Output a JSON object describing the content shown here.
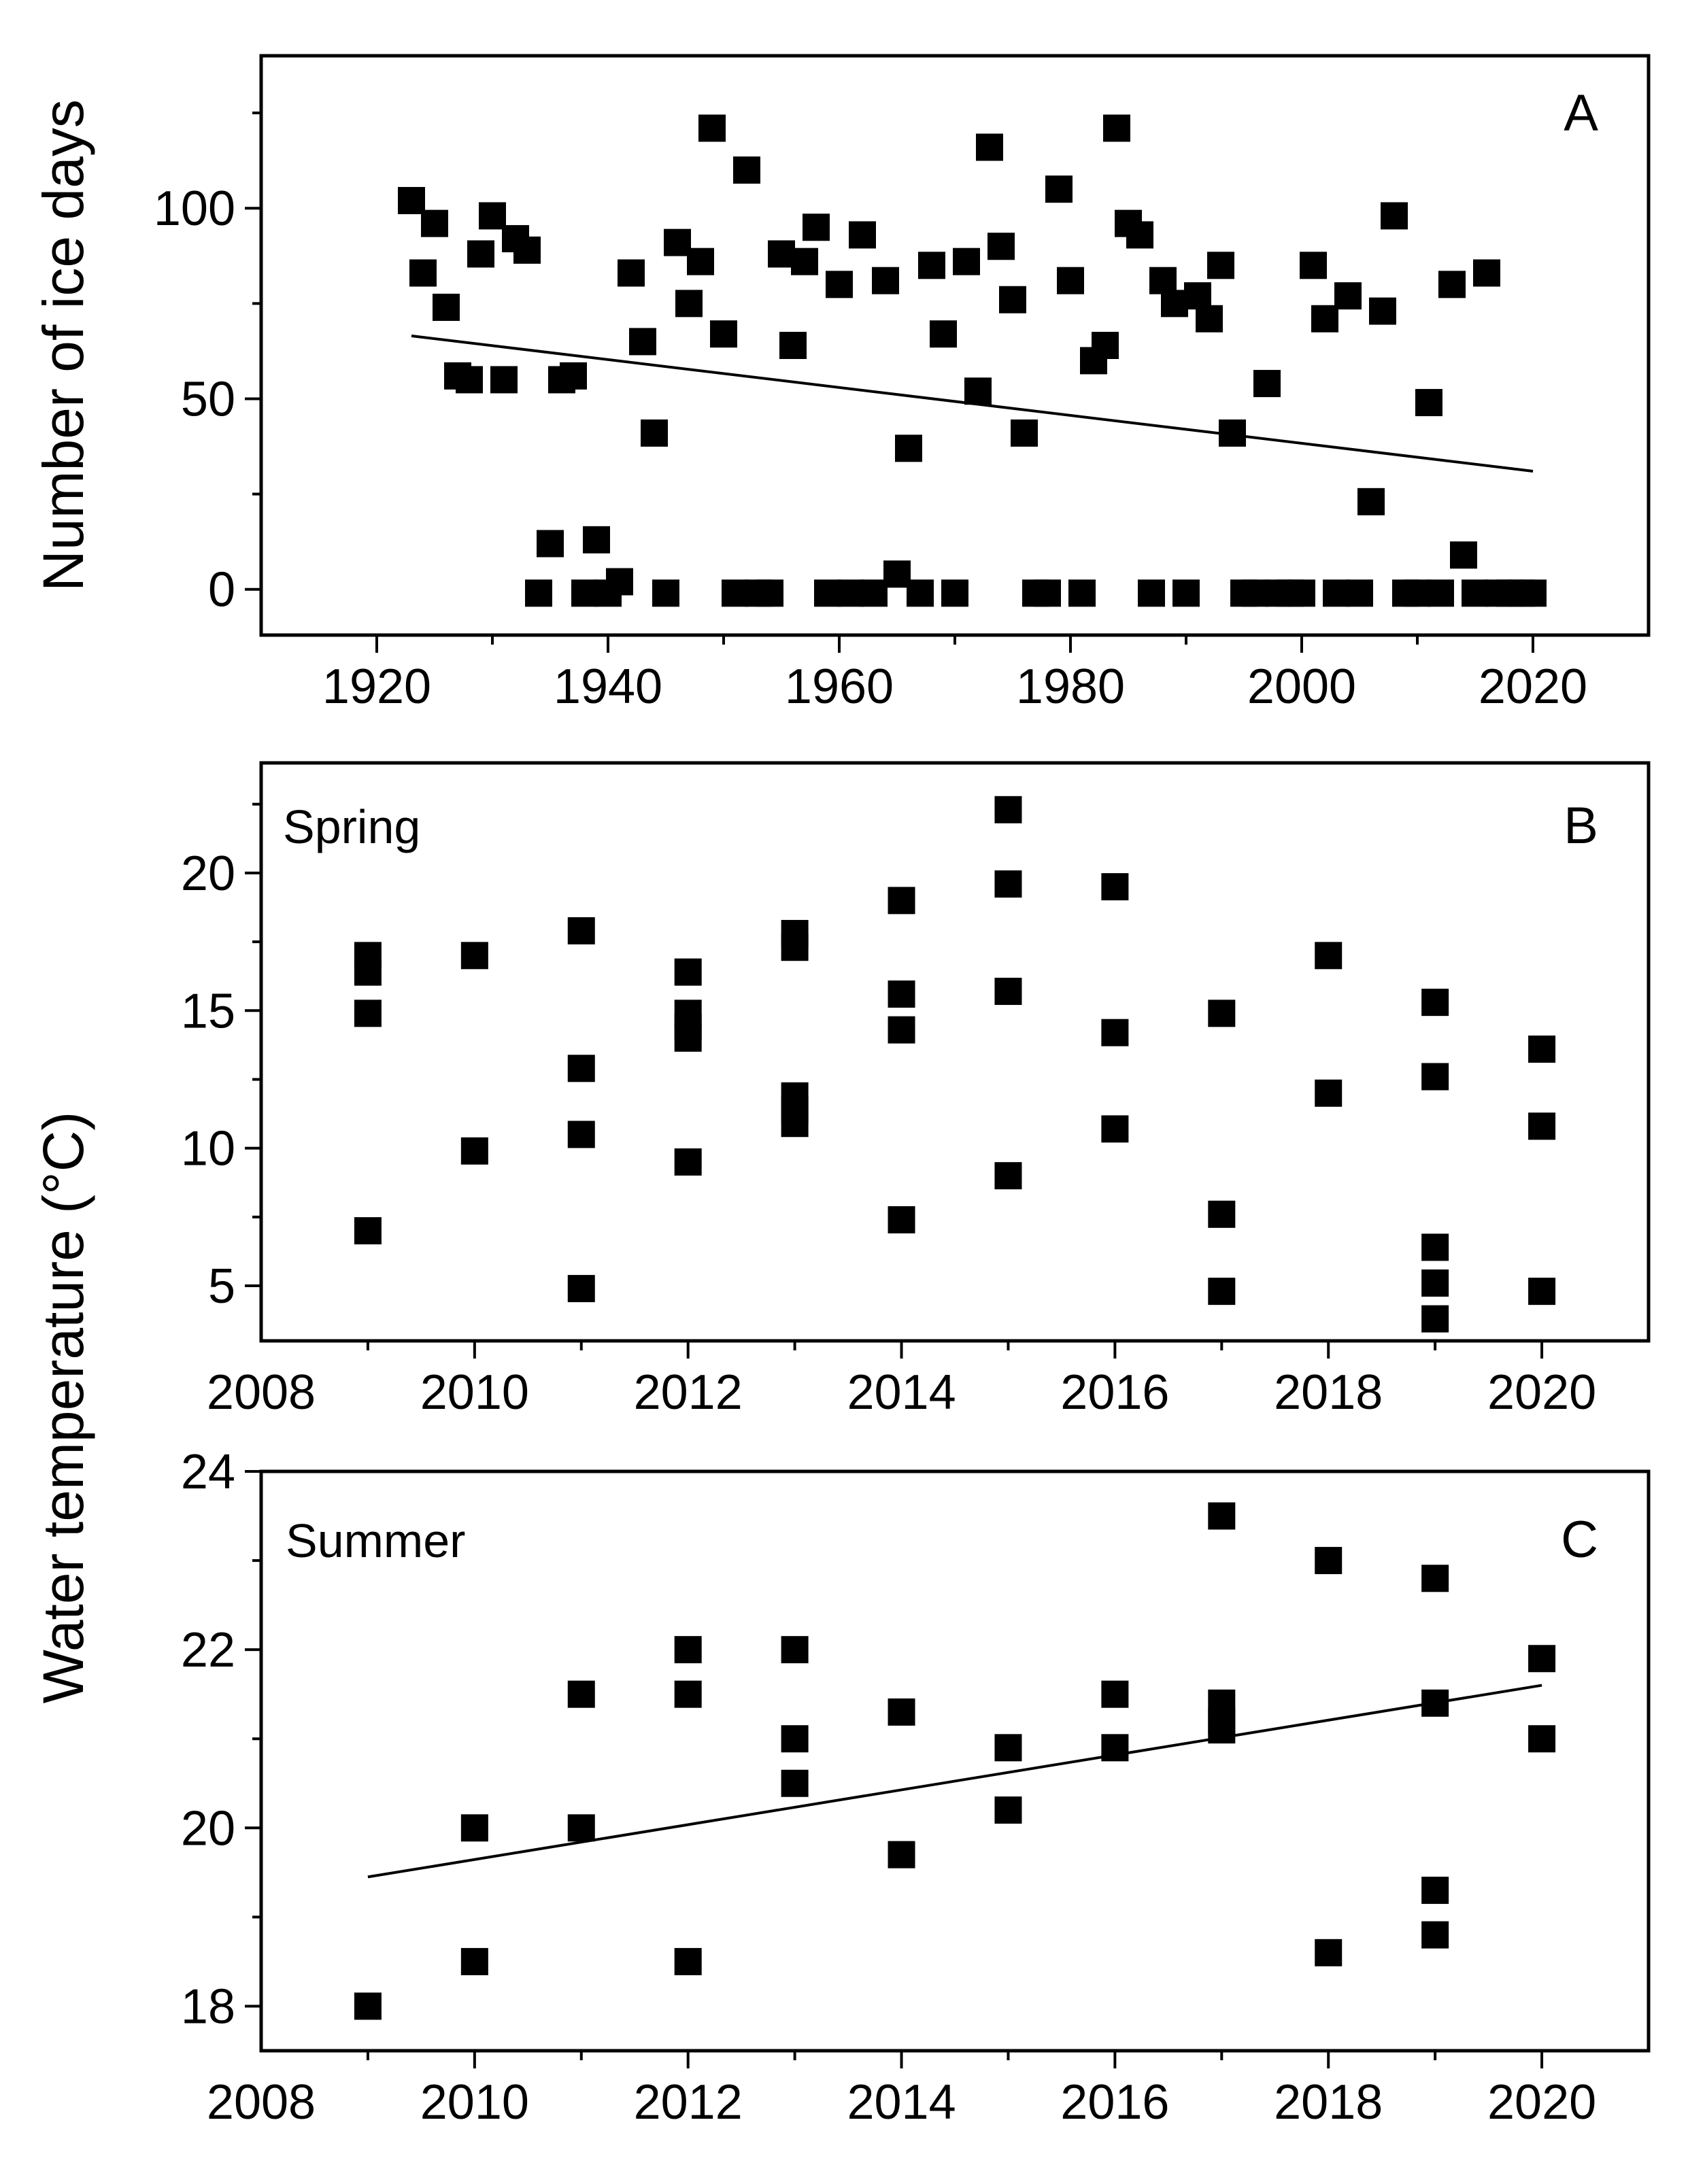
{
  "chart_data": [
    {
      "panel": "A",
      "type": "scatter",
      "ylabel": "Number of ice days",
      "xlim": [
        1910,
        2030
      ],
      "ylim": [
        -12,
        140
      ],
      "xticks": [
        1920,
        1940,
        1960,
        1980,
        2000,
        2020
      ],
      "yticks": [
        0,
        50,
        100
      ],
      "x": [
        1923,
        1924,
        1925,
        1926,
        1927,
        1928,
        1929,
        1930,
        1931,
        1932,
        1933,
        1934,
        1935,
        1936,
        1937,
        1938,
        1939,
        1940,
        1941,
        1942,
        1943,
        1944,
        1945,
        1946,
        1947,
        1948,
        1949,
        1950,
        1951,
        1952,
        1953,
        1954,
        1955,
        1956,
        1957,
        1958,
        1959,
        1960,
        1961,
        1962,
        1963,
        1964,
        1965,
        1966,
        1967,
        1968,
        1969,
        1970,
        1971,
        1972,
        1973,
        1974,
        1975,
        1976,
        1977,
        1978,
        1979,
        1980,
        1981,
        1982,
        1983,
        1984,
        1985,
        1986,
        1987,
        1988,
        1989,
        1990,
        1991,
        1992,
        1993,
        1994,
        1995,
        1996,
        1997,
        1998,
        1999,
        2000,
        2001,
        2002,
        2003,
        2004,
        2005,
        2006,
        2007,
        2008,
        2009,
        2010,
        2011,
        2012,
        2013,
        2014,
        2015,
        2016,
        2017,
        2018,
        2019,
        2020
      ],
      "y": [
        102,
        83,
        96,
        74,
        56,
        55,
        88,
        98,
        55,
        92,
        89,
        -1,
        12,
        55,
        56,
        -1,
        13,
        -1,
        2,
        83,
        65,
        41,
        -1,
        91,
        75,
        86,
        121,
        67,
        -1,
        110,
        -1,
        -1,
        88,
        64,
        86,
        95,
        -1,
        80,
        -1,
        93,
        -1,
        81,
        4,
        37,
        -1,
        85,
        67,
        -1,
        86,
        52,
        116,
        90,
        76,
        41,
        -1,
        -1,
        105,
        81,
        -1,
        60,
        64,
        121,
        96,
        93,
        -1,
        81,
        75,
        -1,
        77,
        71,
        85,
        41,
        -1,
        -1,
        54,
        -1,
        -1,
        -1,
        85,
        71,
        -1,
        77,
        -1,
        23,
        73,
        98,
        -1,
        -1,
        49,
        -1,
        80,
        9,
        -1,
        83,
        -1,
        -1,
        -1,
        -1
      ],
      "trend": {
        "x": [
          1923,
          2020
        ],
        "y": [
          66.5,
          31
        ]
      }
    },
    {
      "panel": "B",
      "type": "scatter",
      "season": "Spring",
      "xlim": [
        2008,
        2021
      ],
      "ylim": [
        3,
        24
      ],
      "xticks": [
        2008,
        2010,
        2012,
        2014,
        2016,
        2018,
        2020
      ],
      "yticks": [
        5,
        10,
        15,
        20
      ],
      "x": [
        2009,
        2009,
        2009,
        2009,
        2010,
        2010,
        2011,
        2011,
        2011,
        2011,
        2012,
        2012,
        2012,
        2012,
        2012,
        2013,
        2013,
        2013,
        2013,
        2013,
        2014,
        2014,
        2014,
        2014,
        2015,
        2015,
        2015,
        2015,
        2016,
        2016,
        2016,
        2017,
        2017,
        2017,
        2018,
        2018,
        2019,
        2019,
        2019,
        2019,
        2019,
        2020,
        2020,
        2020
      ],
      "y": [
        17,
        16.4,
        14.9,
        7,
        17,
        9.9,
        17.9,
        12.9,
        10.5,
        4.9,
        16.4,
        14.9,
        14.4,
        14,
        9.5,
        17.8,
        17.3,
        11.9,
        11.4,
        10.9,
        19,
        15.6,
        14.3,
        7.4,
        22.3,
        19.6,
        15.7,
        9,
        19.5,
        14.2,
        10.7,
        14.9,
        7.6,
        4.8,
        17,
        12,
        15.3,
        12.6,
        6.4,
        5.1,
        3.8,
        13.6,
        10.8,
        4.8
      ]
    },
    {
      "panel": "C",
      "type": "scatter",
      "season": "Summer",
      "xlim": [
        2008,
        2021
      ],
      "ylim": [
        17.5,
        24
      ],
      "xticks": [
        2008,
        2010,
        2012,
        2014,
        2016,
        2018,
        2020
      ],
      "yticks": [
        18,
        20,
        22,
        24
      ],
      "x": [
        2009,
        2010,
        2010,
        2011,
        2011,
        2012,
        2012,
        2012,
        2013,
        2013,
        2013,
        2014,
        2014,
        2015,
        2015,
        2016,
        2016,
        2017,
        2017,
        2017,
        2017,
        2018,
        2018,
        2019,
        2019,
        2019,
        2019,
        2020,
        2020
      ],
      "y": [
        18,
        20,
        18.5,
        21.5,
        20,
        22,
        21.5,
        18.5,
        22,
        21,
        20.5,
        21.3,
        19.7,
        20.9,
        20.2,
        21.5,
        20.9,
        23.5,
        21.4,
        21.2,
        21.1,
        23,
        18.6,
        22.8,
        21.4,
        19.3,
        18.8,
        21.9,
        21
      ],
      "trend": {
        "x": [
          2009,
          2020
        ],
        "y": [
          19.45,
          21.6
        ]
      }
    }
  ],
  "figure": {
    "shared_ylabel": "Water  temperature (°C)",
    "panel_letters": [
      "A",
      "B",
      "C"
    ]
  }
}
